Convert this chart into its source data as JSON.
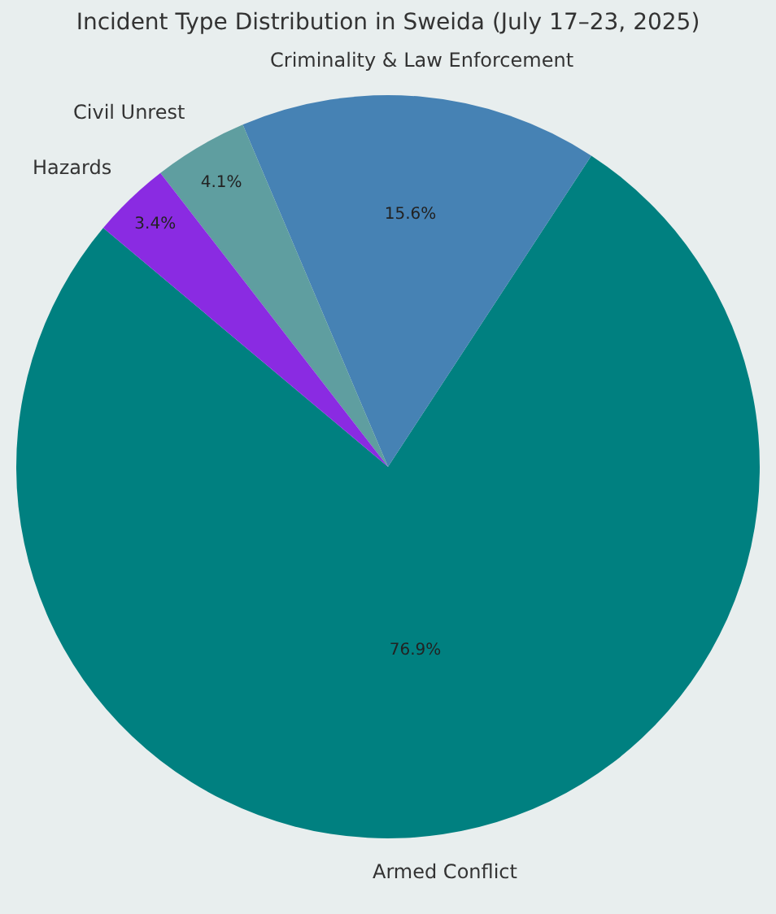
{
  "chart_data": {
    "type": "pie",
    "title": "Incident Type Distribution in Sweida (July 17–23, 2025)",
    "categories": [
      "Armed Conflict",
      "Criminality & Law Enforcement",
      "Civil Unrest",
      "Hazards"
    ],
    "values": [
      76.9,
      15.6,
      4.1,
      3.4
    ],
    "value_labels": [
      "76.9%",
      "15.6%",
      "4.1%",
      "3.4%"
    ],
    "colors": [
      "#008080",
      "#4682b4",
      "#5f9ea0",
      "#8a2be2"
    ]
  }
}
